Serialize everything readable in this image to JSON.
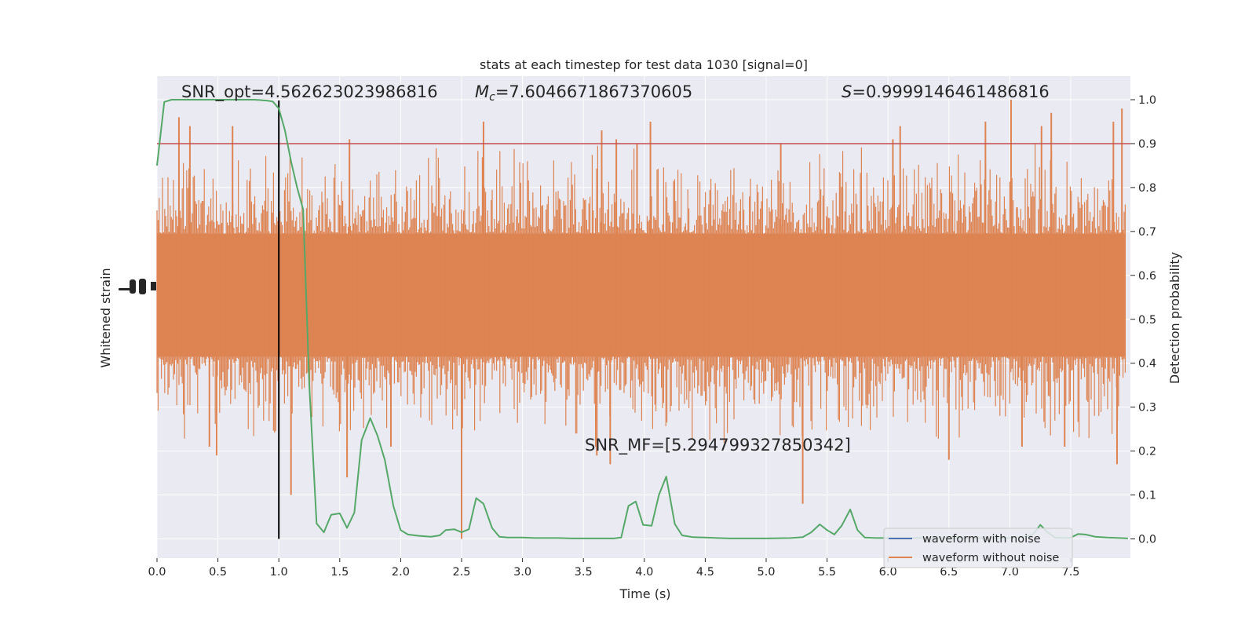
{
  "chart_data": {
    "type": "line",
    "title": "stats at each timestep for test data 1030 [signal=0]",
    "xlabel": "Time (s)",
    "ylabel_left": "Whitened strain",
    "ylabel_right": "Detection probability",
    "xlim": [
      0.0,
      8.0
    ],
    "ylim_right": [
      -0.05,
      1.05
    ],
    "x_ticks": [
      "0.0",
      "0.5",
      "1.0",
      "1.5",
      "2.0",
      "2.5",
      "3.0",
      "3.5",
      "4.0",
      "4.5",
      "5.0",
      "5.5",
      "6.0",
      "6.5",
      "7.0",
      "7.5"
    ],
    "y_ticks_right": [
      "0.0",
      "0.1",
      "0.2",
      "0.3",
      "0.4",
      "0.5",
      "0.6",
      "0.7",
      "0.8",
      "0.9",
      "1.0"
    ],
    "grid": true,
    "annotations": {
      "snr_opt": "SNR_opt=4.562623023986816",
      "mc_symbol": "M",
      "mc_sub": "c",
      "mc_value": "=7.6046671867370605",
      "s_symbol": "S",
      "s_value": "=0.9999146461486816",
      "snr_mf": "SNR_MF=[5.294799327850342]"
    },
    "threshold": {
      "value": 0.9,
      "color": "#c44e52"
    },
    "marker_time": 1.0,
    "series": [
      {
        "name": "waveform with noise",
        "color": "#4c72b0"
      },
      {
        "name": "waveform without noise",
        "color": "#dd8452"
      }
    ],
    "detection_probability": {
      "color": "#55a868",
      "x": [
        0.0,
        0.06,
        0.12,
        0.2,
        0.3,
        0.4,
        0.5,
        0.6,
        0.7,
        0.8,
        0.9,
        0.95,
        1.0,
        1.05,
        1.1,
        1.15,
        1.2,
        1.25,
        1.31,
        1.37,
        1.43,
        1.5,
        1.56,
        1.62,
        1.68,
        1.75,
        1.81,
        1.87,
        1.94,
        2.0,
        2.06,
        2.15,
        2.25,
        2.32,
        2.37,
        2.44,
        2.5,
        2.56,
        2.62,
        2.68,
        2.75,
        2.81,
        2.88,
        3.0,
        3.1,
        3.2,
        3.3,
        3.4,
        3.5,
        3.6,
        3.7,
        3.75,
        3.81,
        3.87,
        3.93,
        3.99,
        4.06,
        4.12,
        4.18,
        4.25,
        4.31,
        4.4,
        4.5,
        4.6,
        4.7,
        4.8,
        5.0,
        5.2,
        5.3,
        5.37,
        5.44,
        5.5,
        5.56,
        5.62,
        5.69,
        5.75,
        5.81,
        5.9,
        6.0,
        6.1,
        6.2,
        6.3,
        6.4,
        6.5,
        6.6,
        6.7,
        6.8,
        6.9,
        7.0,
        7.1,
        7.19,
        7.25,
        7.31,
        7.37,
        7.44,
        7.5,
        7.56,
        7.62,
        7.7,
        7.8,
        7.9,
        7.97
      ],
      "y": [
        0.85,
        0.995,
        1.0,
        1.0,
        1.0,
        1.0,
        1.0,
        1.0,
        1.0,
        1.0,
        0.998,
        0.996,
        0.98,
        0.93,
        0.86,
        0.8,
        0.75,
        0.35,
        0.035,
        0.015,
        0.055,
        0.058,
        0.025,
        0.06,
        0.225,
        0.275,
        0.235,
        0.18,
        0.075,
        0.02,
        0.01,
        0.007,
        0.005,
        0.008,
        0.02,
        0.022,
        0.015,
        0.022,
        0.093,
        0.08,
        0.025,
        0.005,
        0.003,
        0.003,
        0.002,
        0.002,
        0.002,
        0.001,
        0.001,
        0.001,
        0.001,
        0.001,
        0.003,
        0.075,
        0.085,
        0.032,
        0.03,
        0.1,
        0.142,
        0.034,
        0.008,
        0.004,
        0.003,
        0.002,
        0.001,
        0.001,
        0.001,
        0.002,
        0.004,
        0.015,
        0.033,
        0.02,
        0.01,
        0.03,
        0.067,
        0.02,
        0.003,
        0.002,
        0.002,
        0.002,
        0.002,
        0.002,
        0.002,
        0.002,
        0.002,
        0.002,
        0.002,
        0.002,
        0.002,
        0.004,
        0.01,
        0.032,
        0.015,
        0.003,
        0.002,
        0.003,
        0.011,
        0.01,
        0.005,
        0.003,
        0.002,
        0.001
      ]
    },
    "strain_envelope": {
      "note_units": "detection-probability axis",
      "center": 0.555,
      "core_half_width": 0.14,
      "high_peaks": [
        [
          0.18,
          0.96
        ],
        [
          0.27,
          0.94
        ],
        [
          0.62,
          0.94
        ],
        [
          1.58,
          0.91
        ],
        [
          2.68,
          0.95
        ],
        [
          3.65,
          0.93
        ],
        [
          3.77,
          0.91
        ],
        [
          3.94,
          0.9
        ],
        [
          4.05,
          0.95
        ],
        [
          5.12,
          0.9
        ],
        [
          6.04,
          0.91
        ],
        [
          6.1,
          0.94
        ],
        [
          6.8,
          0.95
        ],
        [
          7.01,
          1.0
        ],
        [
          7.26,
          0.94
        ],
        [
          7.34,
          0.97
        ],
        [
          7.85,
          0.95
        ],
        [
          7.92,
          0.98
        ]
      ],
      "low_peaks": [
        [
          0.43,
          0.21
        ],
        [
          0.49,
          0.19
        ],
        [
          1.1,
          0.1
        ],
        [
          1.56,
          0.14
        ],
        [
          1.92,
          0.21
        ],
        [
          2.5,
          0.0
        ],
        [
          3.61,
          0.19
        ],
        [
          3.72,
          0.17
        ],
        [
          5.3,
          0.08
        ],
        [
          6.5,
          0.18
        ],
        [
          7.1,
          0.21
        ],
        [
          7.45,
          0.21
        ],
        [
          7.88,
          0.17
        ]
      ]
    }
  },
  "colors": {
    "plot_bg": "#eaeaf2",
    "grid": "#ffffff",
    "text": "#262626",
    "marker_line": "#000000"
  }
}
